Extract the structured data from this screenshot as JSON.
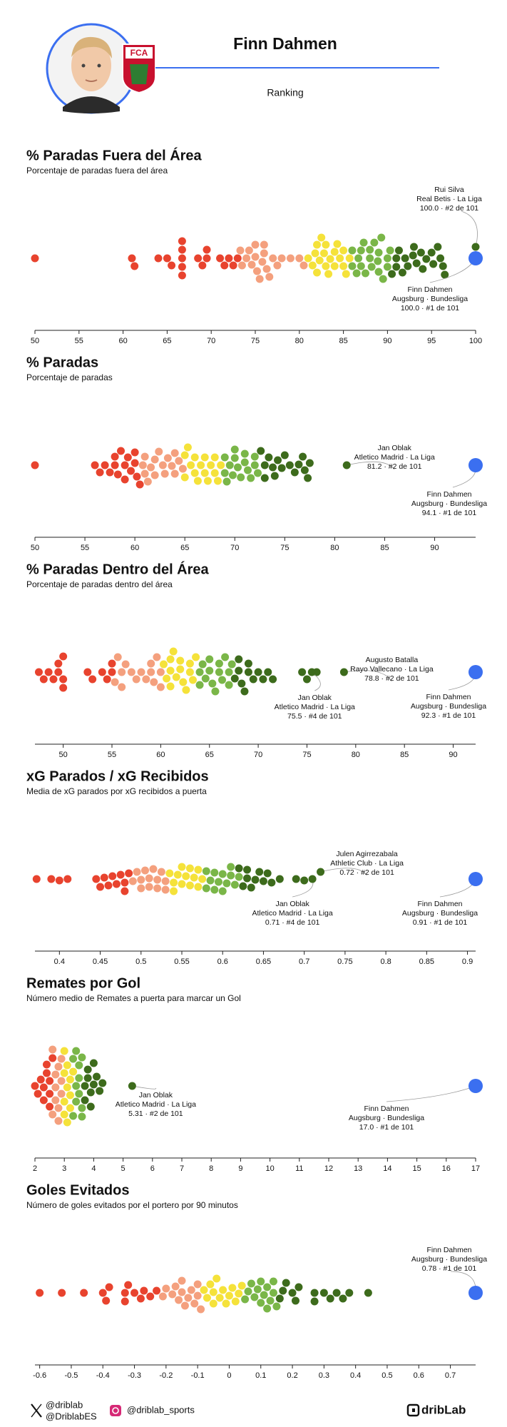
{
  "header": {
    "player": "Finn Dahmen",
    "subtitle": "Ranking",
    "badge": "FCA"
  },
  "footer": {
    "x_handles": [
      "@driblab",
      "@DriblabES"
    ],
    "instagram": "@driblab_sports",
    "brand": "dribLab"
  },
  "chart_data": [
    {
      "type": "beeswarm",
      "title": "% Paradas Fuera del Área",
      "subtitle": "Porcentaje de paradas fuera del área",
      "xlim": [
        50,
        100
      ],
      "xticks": [
        50,
        55,
        60,
        65,
        70,
        75,
        80,
        85,
        90,
        95,
        100
      ],
      "colors": [
        "#e8432e",
        "#f4a07e",
        "#f5e23a",
        "#7ab648",
        "#3d6b1c"
      ],
      "values": [
        50,
        61,
        61.3,
        64,
        65,
        65.5,
        66.7,
        66.7,
        66.7,
        66.7,
        66.7,
        68.5,
        69,
        69.5,
        69.5,
        71,
        71.5,
        72,
        72.5,
        73,
        73.3,
        73.5,
        74,
        74.3,
        74.6,
        75,
        75,
        75.2,
        75.5,
        75.8,
        76,
        76,
        76.3,
        76.6,
        77,
        77.5,
        78,
        79,
        80,
        80.5,
        81,
        81.5,
        81.8,
        82,
        82,
        82.3,
        82.5,
        82.8,
        83,
        83,
        83.3,
        83.5,
        84,
        84,
        84.3,
        84.6,
        85,
        85,
        85.3,
        85.7,
        86,
        86,
        86.5,
        86.7,
        87,
        87,
        87.3,
        87.5,
        88,
        88,
        88.2,
        88.5,
        88.9,
        89,
        89,
        89.3,
        89.5,
        90,
        90,
        90.3,
        90.5,
        91,
        91,
        91.3,
        91.7,
        92,
        92.3,
        92.9,
        93,
        93.3,
        93.8,
        94,
        94.4,
        95,
        95.2,
        95.7,
        96,
        96.3,
        96.5
      ],
      "annotations": [
        {
          "name": "Rui Silva",
          "team": "Real Betis · La Liga",
          "stat": "100.0 · #2 de 101",
          "value": 100,
          "color": "#3d6b1c"
        },
        {
          "name": "Finn Dahmen",
          "team": "Augsburg · Bundesliga",
          "stat": "100.0 · #1 de 101",
          "value": 100,
          "color": "#3b6ff0"
        }
      ]
    },
    {
      "type": "beeswarm",
      "title": "% Paradas",
      "subtitle": "Porcentaje de paradas",
      "xlim": [
        50,
        94.1
      ],
      "xticks": [
        50,
        55,
        60,
        65,
        70,
        75,
        80,
        85,
        90
      ],
      "colors": [
        "#e8432e",
        "#f4a07e",
        "#f5e23a",
        "#7ab648",
        "#3d6b1c"
      ],
      "values": [
        50,
        56,
        56.5,
        57,
        57.5,
        58,
        58,
        58.3,
        58.6,
        59,
        59,
        59.3,
        59.6,
        60,
        60,
        60.2,
        60.5,
        60.8,
        61,
        61,
        61.3,
        61.6,
        62,
        62,
        62.4,
        62.8,
        63,
        63.3,
        63.7,
        64,
        64,
        64.4,
        64.8,
        65,
        65,
        65.3,
        65.6,
        66,
        66,
        66.3,
        66.6,
        67,
        67,
        67.3,
        67.6,
        68,
        68,
        68.3,
        68.6,
        69,
        69,
        69.2,
        69.5,
        69.8,
        70,
        70,
        70.3,
        70.6,
        71,
        71,
        71.3,
        71.6,
        72,
        72,
        72.3,
        72.6,
        73,
        73,
        73.4,
        73.8,
        74,
        74.3,
        74.7,
        75,
        75.5,
        76,
        76.4,
        76.8,
        77,
        77.3,
        77.5
      ],
      "annotations": [
        {
          "name": "Jan Oblak",
          "team": "Atletico Madrid · La Liga",
          "stat": "81.2 · #2 de 101",
          "value": 81.2,
          "color": "#3d6b1c"
        },
        {
          "name": "Finn Dahmen",
          "team": "Augsburg · Bundesliga",
          "stat": "94.1 · #1 de 101",
          "value": 94.1,
          "color": "#3b6ff0"
        }
      ]
    },
    {
      "type": "beeswarm",
      "title": "% Paradas Dentro del Área",
      "subtitle": "Porcentaje de paradas dentro del área",
      "xlim": [
        47.1,
        92.3
      ],
      "xticks": [
        50,
        55,
        60,
        65,
        70,
        75,
        80,
        85,
        90
      ],
      "colors": [
        "#e8432e",
        "#f4a07e",
        "#f5e23a",
        "#7ab648",
        "#3d6b1c"
      ],
      "values": [
        47.5,
        48,
        48.5,
        49,
        49.5,
        49.5,
        50,
        50,
        50,
        52.5,
        53,
        54,
        54.5,
        55,
        55,
        55.3,
        55.6,
        56,
        56,
        56.4,
        57,
        57.5,
        58,
        58.5,
        59,
        59,
        59.3,
        59.6,
        60,
        60,
        60.3,
        60.6,
        61,
        61,
        61,
        61.3,
        61.6,
        62,
        62,
        62.3,
        62.6,
        63,
        63,
        63.3,
        63.6,
        64,
        64,
        64.3,
        64.6,
        65,
        65,
        65.3,
        65.6,
        66,
        66,
        66.3,
        66.6,
        67,
        67,
        67.3,
        67.6,
        68,
        68,
        68.3,
        68.6,
        69,
        69,
        69.5,
        70,
        70.5,
        71,
        71.5,
        74.5,
        75,
        76
      ],
      "annotations": [
        {
          "name": "Jan Oblak",
          "team": "Atletico Madrid · La Liga",
          "stat": "75.5 · #4 de 101",
          "value": 75.5,
          "color": "#3d6b1c"
        },
        {
          "name": "Augusto Batalla",
          "team": "Rayo Vallecano · La Liga",
          "stat": "78.8 · #2 de 101",
          "value": 78.8,
          "color": "#3d6b1c"
        },
        {
          "name": "Finn Dahmen",
          "team": "Augsburg · Bundesliga",
          "stat": "92.3 · #1 de 101",
          "value": 92.3,
          "color": "#3b6ff0"
        }
      ]
    },
    {
      "type": "beeswarm",
      "title": "xG Parados / xG Recibidos",
      "subtitle": "Media de xG parados por xG recibidos a puerta",
      "xlim": [
        0.37,
        0.91
      ],
      "xticks": [
        0.4,
        0.45,
        0.5,
        0.55,
        0.6,
        0.65,
        0.7,
        0.75,
        0.8,
        0.85,
        0.9
      ],
      "colors": [
        "#e8432e",
        "#f4a07e",
        "#f5e23a",
        "#7ab648",
        "#3d6b1c"
      ],
      "values": [
        0.372,
        0.39,
        0.4,
        0.41,
        0.445,
        0.45,
        0.455,
        0.46,
        0.465,
        0.47,
        0.475,
        0.48,
        0.48,
        0.485,
        0.49,
        0.495,
        0.5,
        0.5,
        0.505,
        0.51,
        0.51,
        0.515,
        0.52,
        0.52,
        0.525,
        0.53,
        0.53,
        0.535,
        0.54,
        0.54,
        0.545,
        0.55,
        0.55,
        0.555,
        0.56,
        0.56,
        0.565,
        0.57,
        0.57,
        0.575,
        0.58,
        0.58,
        0.585,
        0.59,
        0.59,
        0.595,
        0.6,
        0.6,
        0.605,
        0.61,
        0.61,
        0.615,
        0.62,
        0.62,
        0.625,
        0.63,
        0.63,
        0.635,
        0.64,
        0.645,
        0.65,
        0.655,
        0.66,
        0.67,
        0.69,
        0.7
      ],
      "annotations": [
        {
          "name": "Jan Oblak",
          "team": "Atletico Madrid · La Liga",
          "stat": "0.71 · #4 de 101",
          "value": 0.71,
          "color": "#3d6b1c"
        },
        {
          "name": "Julen Agirrezabala",
          "team": "Athletic Club · La Liga",
          "stat": "0.72 · #2 de 101",
          "value": 0.72,
          "color": "#3d6b1c"
        },
        {
          "name": "Finn Dahmen",
          "team": "Augsburg · Bundesliga",
          "stat": "0.91 · #1 de 101",
          "value": 0.91,
          "color": "#3b6ff0"
        }
      ]
    },
    {
      "type": "beeswarm",
      "title": "Remates por Gol",
      "subtitle": "Número medio de Remates a puerta para marcar un Gol",
      "xlim": [
        2,
        17
      ],
      "xticks": [
        2,
        3,
        4,
        5,
        6,
        7,
        8,
        9,
        10,
        11,
        12,
        13,
        14,
        15,
        16,
        17
      ],
      "colors": [
        "#e8432e",
        "#f4a07e",
        "#f5e23a",
        "#7ab648",
        "#3d6b1c"
      ],
      "values": [
        2,
        2.1,
        2.2,
        2.3,
        2.3,
        2.4,
        2.4,
        2.5,
        2.5,
        2.5,
        2.6,
        2.6,
        2.6,
        2.7,
        2.7,
        2.7,
        2.8,
        2.8,
        2.8,
        2.9,
        2.9,
        2.9,
        3,
        3,
        3,
        3,
        3.1,
        3.1,
        3.1,
        3.2,
        3.2,
        3.2,
        3.3,
        3.3,
        3.3,
        3.4,
        3.4,
        3.4,
        3.5,
        3.5,
        3.5,
        3.6,
        3.6,
        3.6,
        3.7,
        3.7,
        3.8,
        3.8,
        3.9,
        3.9,
        4,
        4,
        4.1,
        4.2,
        4.3
      ],
      "annotations": [
        {
          "name": "Jan Oblak",
          "team": "Atletico Madrid · La Liga",
          "stat": "5.31 · #2 de 101",
          "value": 5.31,
          "color": "#3d6b1c"
        },
        {
          "name": "Finn Dahmen",
          "team": "Augsburg · Bundesliga",
          "stat": "17.0 · #1 de 101",
          "value": 17,
          "color": "#3b6ff0"
        }
      ]
    },
    {
      "type": "beeswarm",
      "title": "Goles Evitados",
      "subtitle": "Número de goles evitados por el portero por 90 minutos",
      "xlim": [
        -0.615,
        0.78
      ],
      "xticks": [
        -0.6,
        -0.5,
        -0.4,
        -0.3,
        -0.2,
        -0.1,
        0,
        0.1,
        0.2,
        0.3,
        0.4,
        0.5,
        0.6,
        0.7
      ],
      "colors": [
        "#e8432e",
        "#f4a07e",
        "#f5e23a",
        "#7ab648",
        "#3d6b1c"
      ],
      "values": [
        -0.6,
        -0.53,
        -0.46,
        -0.4,
        -0.39,
        -0.38,
        -0.33,
        -0.33,
        -0.32,
        -0.3,
        -0.28,
        -0.27,
        -0.25,
        -0.23,
        -0.21,
        -0.2,
        -0.18,
        -0.17,
        -0.16,
        -0.15,
        -0.15,
        -0.14,
        -0.13,
        -0.12,
        -0.11,
        -0.1,
        -0.1,
        -0.09,
        -0.08,
        -0.07,
        -0.06,
        -0.05,
        -0.05,
        -0.04,
        -0.03,
        -0.02,
        -0.01,
        0,
        0.01,
        0.02,
        0.03,
        0.04,
        0.05,
        0.06,
        0.07,
        0.08,
        0.09,
        0.1,
        0.1,
        0.11,
        0.12,
        0.12,
        0.13,
        0.14,
        0.14,
        0.15,
        0.16,
        0.17,
        0.18,
        0.2,
        0.21,
        0.22,
        0.27,
        0.27,
        0.3,
        0.32,
        0.34,
        0.36,
        0.38,
        0.44
      ],
      "annotations": [
        {
          "name": "Finn Dahmen",
          "team": "Augsburg · Bundesliga",
          "stat": "0.78 · #1 de 101",
          "value": 0.78,
          "color": "#3b6ff0"
        }
      ]
    }
  ]
}
